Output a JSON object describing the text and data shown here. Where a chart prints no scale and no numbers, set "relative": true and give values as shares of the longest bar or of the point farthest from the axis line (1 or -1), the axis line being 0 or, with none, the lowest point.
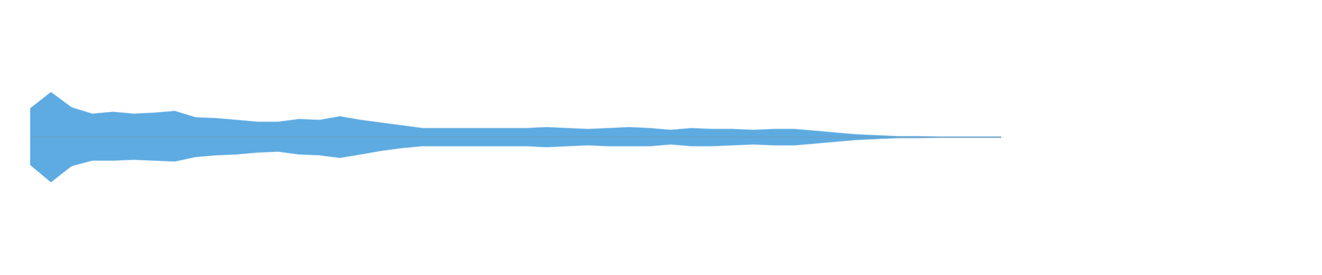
{
  "chart_data": {
    "type": "area",
    "relative": true,
    "categories": [
      null,
      null,
      null,
      null,
      null,
      null,
      null,
      null,
      null,
      null,
      null,
      null,
      null,
      null,
      null,
      null,
      null,
      null,
      null,
      null,
      null,
      null,
      null,
      null,
      null,
      null,
      null,
      null,
      null,
      null,
      null,
      null,
      null,
      null,
      null,
      null,
      null,
      null,
      null,
      null,
      null,
      null,
      null,
      null,
      null,
      null,
      null,
      null
    ],
    "series": [
      {
        "color": "#5dabe1",
        "values": [
          0.64,
          1.0,
          0.66,
          0.52,
          0.56,
          0.52,
          0.54,
          0.58,
          0.44,
          0.42,
          0.38,
          0.34,
          0.34,
          0.4,
          0.38,
          0.46,
          0.38,
          0.32,
          0.26,
          0.2,
          0.2,
          0.2,
          0.2,
          0.2,
          0.2,
          0.22,
          0.2,
          0.18,
          0.2,
          0.22,
          0.2,
          0.16,
          0.2,
          0.18,
          0.18,
          0.16,
          0.18,
          0.18,
          0.14,
          0.1,
          0.06,
          0.04,
          0.02,
          0.02,
          0.01,
          0.01,
          0.01,
          0.01
        ]
      },
      {
        "color": "#5dabe1",
        "values": [
          -0.62,
          -1.0,
          -0.64,
          -0.52,
          -0.52,
          -0.5,
          -0.52,
          -0.54,
          -0.44,
          -0.4,
          -0.38,
          -0.34,
          -0.32,
          -0.38,
          -0.4,
          -0.46,
          -0.38,
          -0.3,
          -0.24,
          -0.2,
          -0.2,
          -0.2,
          -0.2,
          -0.2,
          -0.2,
          -0.22,
          -0.2,
          -0.18,
          -0.2,
          -0.2,
          -0.2,
          -0.16,
          -0.2,
          -0.2,
          -0.18,
          -0.16,
          -0.18,
          -0.18,
          -0.14,
          -0.1,
          -0.06,
          -0.04,
          -0.02,
          -0.02,
          -0.01,
          -0.01,
          -0.01,
          -0.01
        ]
      }
    ]
  }
}
